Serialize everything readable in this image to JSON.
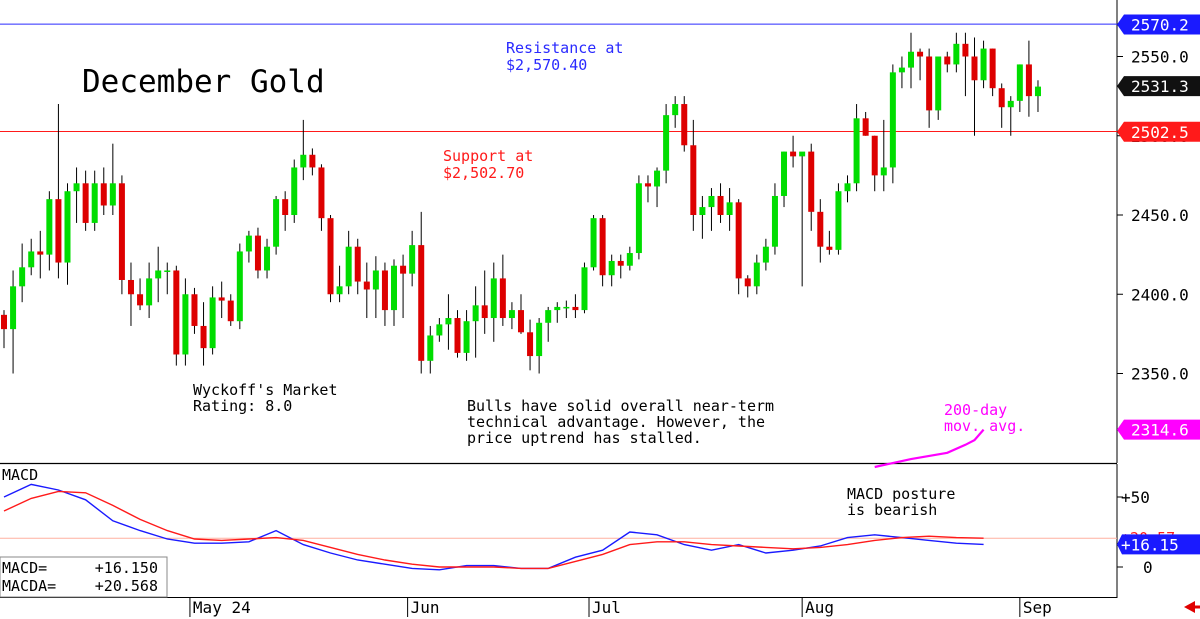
{
  "chart_data": [
    {
      "type": "candlestick",
      "title": "December Gold",
      "ylim": [
        2290,
        2590
      ],
      "y_ticks": [
        2350.0,
        2400.0,
        2450.0,
        2500.0,
        2550.0
      ],
      "y_tick_labels": [
        "2350.0",
        "2400.0",
        "2450.0",
        "2500.0",
        "2550.0"
      ],
      "x_month_labels": [
        "May 24",
        "Jun",
        "Jul",
        "Aug",
        "Sep"
      ],
      "price_tags": [
        {
          "label": "2570.2",
          "value": 2570.2,
          "color": "#1a1aff",
          "text_color": "#ffffff"
        },
        {
          "label": "2531.3",
          "value": 2531.3,
          "color": "#111111",
          "text_color": "#ffffff"
        },
        {
          "label": "2502.5",
          "value": 2502.5,
          "color": "#ff1a1a",
          "text_color": "#ffffff"
        },
        {
          "label": "2314.6",
          "value": 2314.6,
          "color": "#ff00ff",
          "text_color": "#ffffff"
        }
      ],
      "resistance": {
        "value": 2570.4,
        "label_lines": [
          "Resistance at",
          "$2,570.40"
        ],
        "color": "#2a2aff"
      },
      "support": {
        "value": 2502.7,
        "label_lines": [
          "Support at",
          "$2,502.70"
        ],
        "color": "#ff1a1a"
      },
      "moving_average": {
        "label_lines": [
          "200-day",
          "mov. avg."
        ],
        "color": "#ff00ff",
        "points": [
          [
            96,
            2291
          ],
          [
            100,
            2296
          ],
          [
            104,
            2300
          ],
          [
            106,
            2305
          ],
          [
            107,
            2308
          ],
          [
            108,
            2314.6
          ]
        ]
      },
      "annotations": {
        "rating": [
          "Wyckoff's Market",
          "Rating: 8.0"
        ],
        "comment": [
          "Bulls have solid overall near-term",
          "technical advantage. However, the",
          "price uptrend has stalled."
        ]
      },
      "colors": {
        "up": "#00dd00",
        "down": "#dd0000"
      },
      "candles": [
        [
          2387,
          2390,
          2366,
          2378
        ],
        [
          2378,
          2415,
          2350,
          2405
        ],
        [
          2405,
          2432,
          2395,
          2417
        ],
        [
          2417,
          2435,
          2412,
          2427
        ],
        [
          2427,
          2440,
          2410,
          2425
        ],
        [
          2425,
          2465,
          2415,
          2460
        ],
        [
          2460,
          2520,
          2410,
          2420
        ],
        [
          2420,
          2470,
          2406,
          2465
        ],
        [
          2465,
          2480,
          2445,
          2470
        ],
        [
          2470,
          2478,
          2440,
          2445
        ],
        [
          2445,
          2478,
          2440,
          2470
        ],
        [
          2470,
          2480,
          2450,
          2456
        ],
        [
          2456,
          2495,
          2450,
          2470
        ],
        [
          2470,
          2475,
          2400,
          2409
        ],
        [
          2409,
          2420,
          2380,
          2400
        ],
        [
          2400,
          2410,
          2390,
          2393
        ],
        [
          2393,
          2420,
          2385,
          2410
        ],
        [
          2410,
          2430,
          2395,
          2415
        ],
        [
          2415,
          2420,
          2400,
          2415
        ],
        [
          2415,
          2418,
          2355,
          2362
        ],
        [
          2362,
          2410,
          2355,
          2400
        ],
        [
          2400,
          2404,
          2375,
          2380
        ],
        [
          2380,
          2395,
          2355,
          2366
        ],
        [
          2366,
          2405,
          2362,
          2398
        ],
        [
          2398,
          2408,
          2385,
          2396
        ],
        [
          2396,
          2400,
          2380,
          2383
        ],
        [
          2383,
          2432,
          2378,
          2427
        ],
        [
          2427,
          2440,
          2420,
          2437
        ],
        [
          2437,
          2442,
          2410,
          2415
        ],
        [
          2415,
          2435,
          2410,
          2430
        ],
        [
          2430,
          2462,
          2425,
          2460
        ],
        [
          2460,
          2465,
          2440,
          2450
        ],
        [
          2450,
          2485,
          2445,
          2480
        ],
        [
          2480,
          2510,
          2472,
          2488
        ],
        [
          2488,
          2492,
          2475,
          2480
        ],
        [
          2480,
          2482,
          2440,
          2448
        ],
        [
          2448,
          2450,
          2395,
          2400
        ],
        [
          2400,
          2418,
          2395,
          2405
        ],
        [
          2405,
          2440,
          2400,
          2430
        ],
        [
          2430,
          2435,
          2400,
          2408
        ],
        [
          2408,
          2420,
          2385,
          2403
        ],
        [
          2403,
          2424,
          2385,
          2415
        ],
        [
          2415,
          2420,
          2380,
          2390
        ],
        [
          2390,
          2422,
          2380,
          2418
        ],
        [
          2418,
          2425,
          2385,
          2413
        ],
        [
          2413,
          2440,
          2405,
          2431
        ],
        [
          2431,
          2452,
          2350,
          2358
        ],
        [
          2358,
          2380,
          2350,
          2374
        ],
        [
          2374,
          2385,
          2370,
          2381
        ],
        [
          2381,
          2400,
          2365,
          2385
        ],
        [
          2385,
          2390,
          2360,
          2363
        ],
        [
          2363,
          2390,
          2358,
          2383
        ],
        [
          2383,
          2405,
          2360,
          2393
        ],
        [
          2393,
          2415,
          2375,
          2385
        ],
        [
          2385,
          2420,
          2370,
          2410
        ],
        [
          2410,
          2425,
          2380,
          2385
        ],
        [
          2385,
          2395,
          2378,
          2390
        ],
        [
          2390,
          2400,
          2375,
          2376
        ],
        [
          2376,
          2384,
          2352,
          2361
        ],
        [
          2361,
          2385,
          2350,
          2382
        ],
        [
          2382,
          2392,
          2370,
          2390
        ],
        [
          2390,
          2395,
          2382,
          2392
        ],
        [
          2392,
          2396,
          2385,
          2392
        ],
        [
          2392,
          2400,
          2385,
          2390
        ],
        [
          2390,
          2420,
          2388,
          2417
        ],
        [
          2417,
          2450,
          2415,
          2448
        ],
        [
          2448,
          2450,
          2405,
          2412
        ],
        [
          2412,
          2425,
          2405,
          2421
        ],
        [
          2421,
          2425,
          2410,
          2418
        ],
        [
          2418,
          2430,
          2415,
          2426
        ],
        [
          2426,
          2475,
          2422,
          2470
        ],
        [
          2470,
          2475,
          2458,
          2468
        ],
        [
          2468,
          2480,
          2455,
          2478
        ],
        [
          2478,
          2520,
          2470,
          2513
        ],
        [
          2513,
          2525,
          2505,
          2520
        ],
        [
          2520,
          2525,
          2490,
          2494
        ],
        [
          2494,
          2510,
          2440,
          2450
        ],
        [
          2450,
          2462,
          2435,
          2455
        ],
        [
          2455,
          2467,
          2440,
          2462
        ],
        [
          2462,
          2470,
          2445,
          2450
        ],
        [
          2450,
          2467,
          2440,
          2458
        ],
        [
          2458,
          2460,
          2400,
          2410
        ],
        [
          2410,
          2412,
          2398,
          2405
        ],
        [
          2405,
          2425,
          2400,
          2420
        ],
        [
          2420,
          2435,
          2415,
          2430
        ],
        [
          2430,
          2470,
          2425,
          2462
        ],
        [
          2462,
          2490,
          2455,
          2490
        ],
        [
          2490,
          2500,
          2480,
          2487
        ],
        [
          2487,
          2488,
          2405,
          2490
        ],
        [
          2490,
          2495,
          2440,
          2452
        ],
        [
          2452,
          2460,
          2420,
          2430
        ],
        [
          2430,
          2440,
          2425,
          2428
        ],
        [
          2428,
          2470,
          2425,
          2465
        ],
        [
          2465,
          2475,
          2458,
          2470
        ],
        [
          2470,
          2520,
          2465,
          2511
        ],
        [
          2511,
          2515,
          2500,
          2500
        ],
        [
          2500,
          2500,
          2465,
          2475
        ],
        [
          2475,
          2510,
          2465,
          2480
        ],
        [
          2480,
          2545,
          2470,
          2540
        ],
        [
          2540,
          2550,
          2530,
          2543
        ],
        [
          2543,
          2565,
          2530,
          2553
        ],
        [
          2553,
          2555,
          2535,
          2550
        ],
        [
          2550,
          2555,
          2505,
          2516
        ],
        [
          2516,
          2550,
          2510,
          2550
        ],
        [
          2550,
          2553,
          2540,
          2545
        ],
        [
          2545,
          2565,
          2540,
          2558
        ],
        [
          2558,
          2565,
          2525,
          2550
        ],
        [
          2550,
          2562,
          2500,
          2535
        ],
        [
          2535,
          2560,
          2530,
          2555
        ],
        [
          2555,
          2555,
          2525,
          2530
        ],
        [
          2530,
          2533,
          2505,
          2518
        ],
        [
          2518,
          2525,
          2500,
          2522
        ],
        [
          2522,
          2545,
          2515,
          2545
        ],
        [
          2545,
          2560,
          2512,
          2525
        ],
        [
          2525,
          2535,
          2515,
          2531
        ]
      ]
    },
    {
      "type": "line",
      "title": "MACD",
      "ylim": [
        -5,
        65
      ],
      "y_tick_labels": [
        "+50",
        "0"
      ],
      "y_tick_values": [
        50,
        0
      ],
      "signal_level": 20.568,
      "signal_tag_hidden_text": "+20.57",
      "value_tag": {
        "label": "+16.15",
        "color": "#1a1aff"
      },
      "readout": [
        {
          "label": "MACD=",
          "value": "+16.150"
        },
        {
          "label": "MACDA=",
          "value": "+20.568"
        }
      ],
      "annotation": [
        "MACD posture",
        "is bearish"
      ],
      "series": [
        {
          "name": "MACD",
          "color": "#1a1aff",
          "x": [
            0,
            3,
            6,
            9,
            12,
            15,
            18,
            21,
            24,
            27,
            30,
            33,
            36,
            39,
            42,
            45,
            48,
            51,
            54,
            57,
            60,
            63,
            66,
            69,
            72,
            75,
            78,
            81,
            84,
            87,
            90,
            93,
            96,
            99,
            102,
            105,
            108
          ],
          "y": [
            50,
            59,
            55,
            48,
            33,
            26,
            20,
            17,
            17,
            18,
            26,
            16,
            10,
            5,
            2,
            -1,
            -2,
            1,
            1,
            -1,
            -1,
            7,
            12,
            25,
            23,
            16,
            12,
            16,
            10,
            12,
            15,
            21,
            23,
            21,
            19,
            17,
            16.15
          ]
        },
        {
          "name": "MACDA",
          "color": "#ff1a1a",
          "x": [
            0,
            3,
            6,
            9,
            12,
            15,
            18,
            21,
            24,
            27,
            30,
            33,
            36,
            39,
            42,
            45,
            48,
            51,
            54,
            57,
            60,
            63,
            66,
            69,
            72,
            75,
            78,
            81,
            84,
            87,
            90,
            93,
            96,
            99,
            102,
            105,
            108
          ],
          "y": [
            40,
            49,
            54,
            53,
            44,
            34,
            26,
            20,
            19,
            20,
            21,
            19,
            14,
            9,
            5,
            2,
            0,
            0,
            0,
            -1,
            -1,
            4,
            9,
            16,
            18,
            18,
            16,
            15,
            14,
            13,
            14,
            16,
            19,
            21,
            22,
            21,
            20.568
          ]
        }
      ]
    }
  ]
}
